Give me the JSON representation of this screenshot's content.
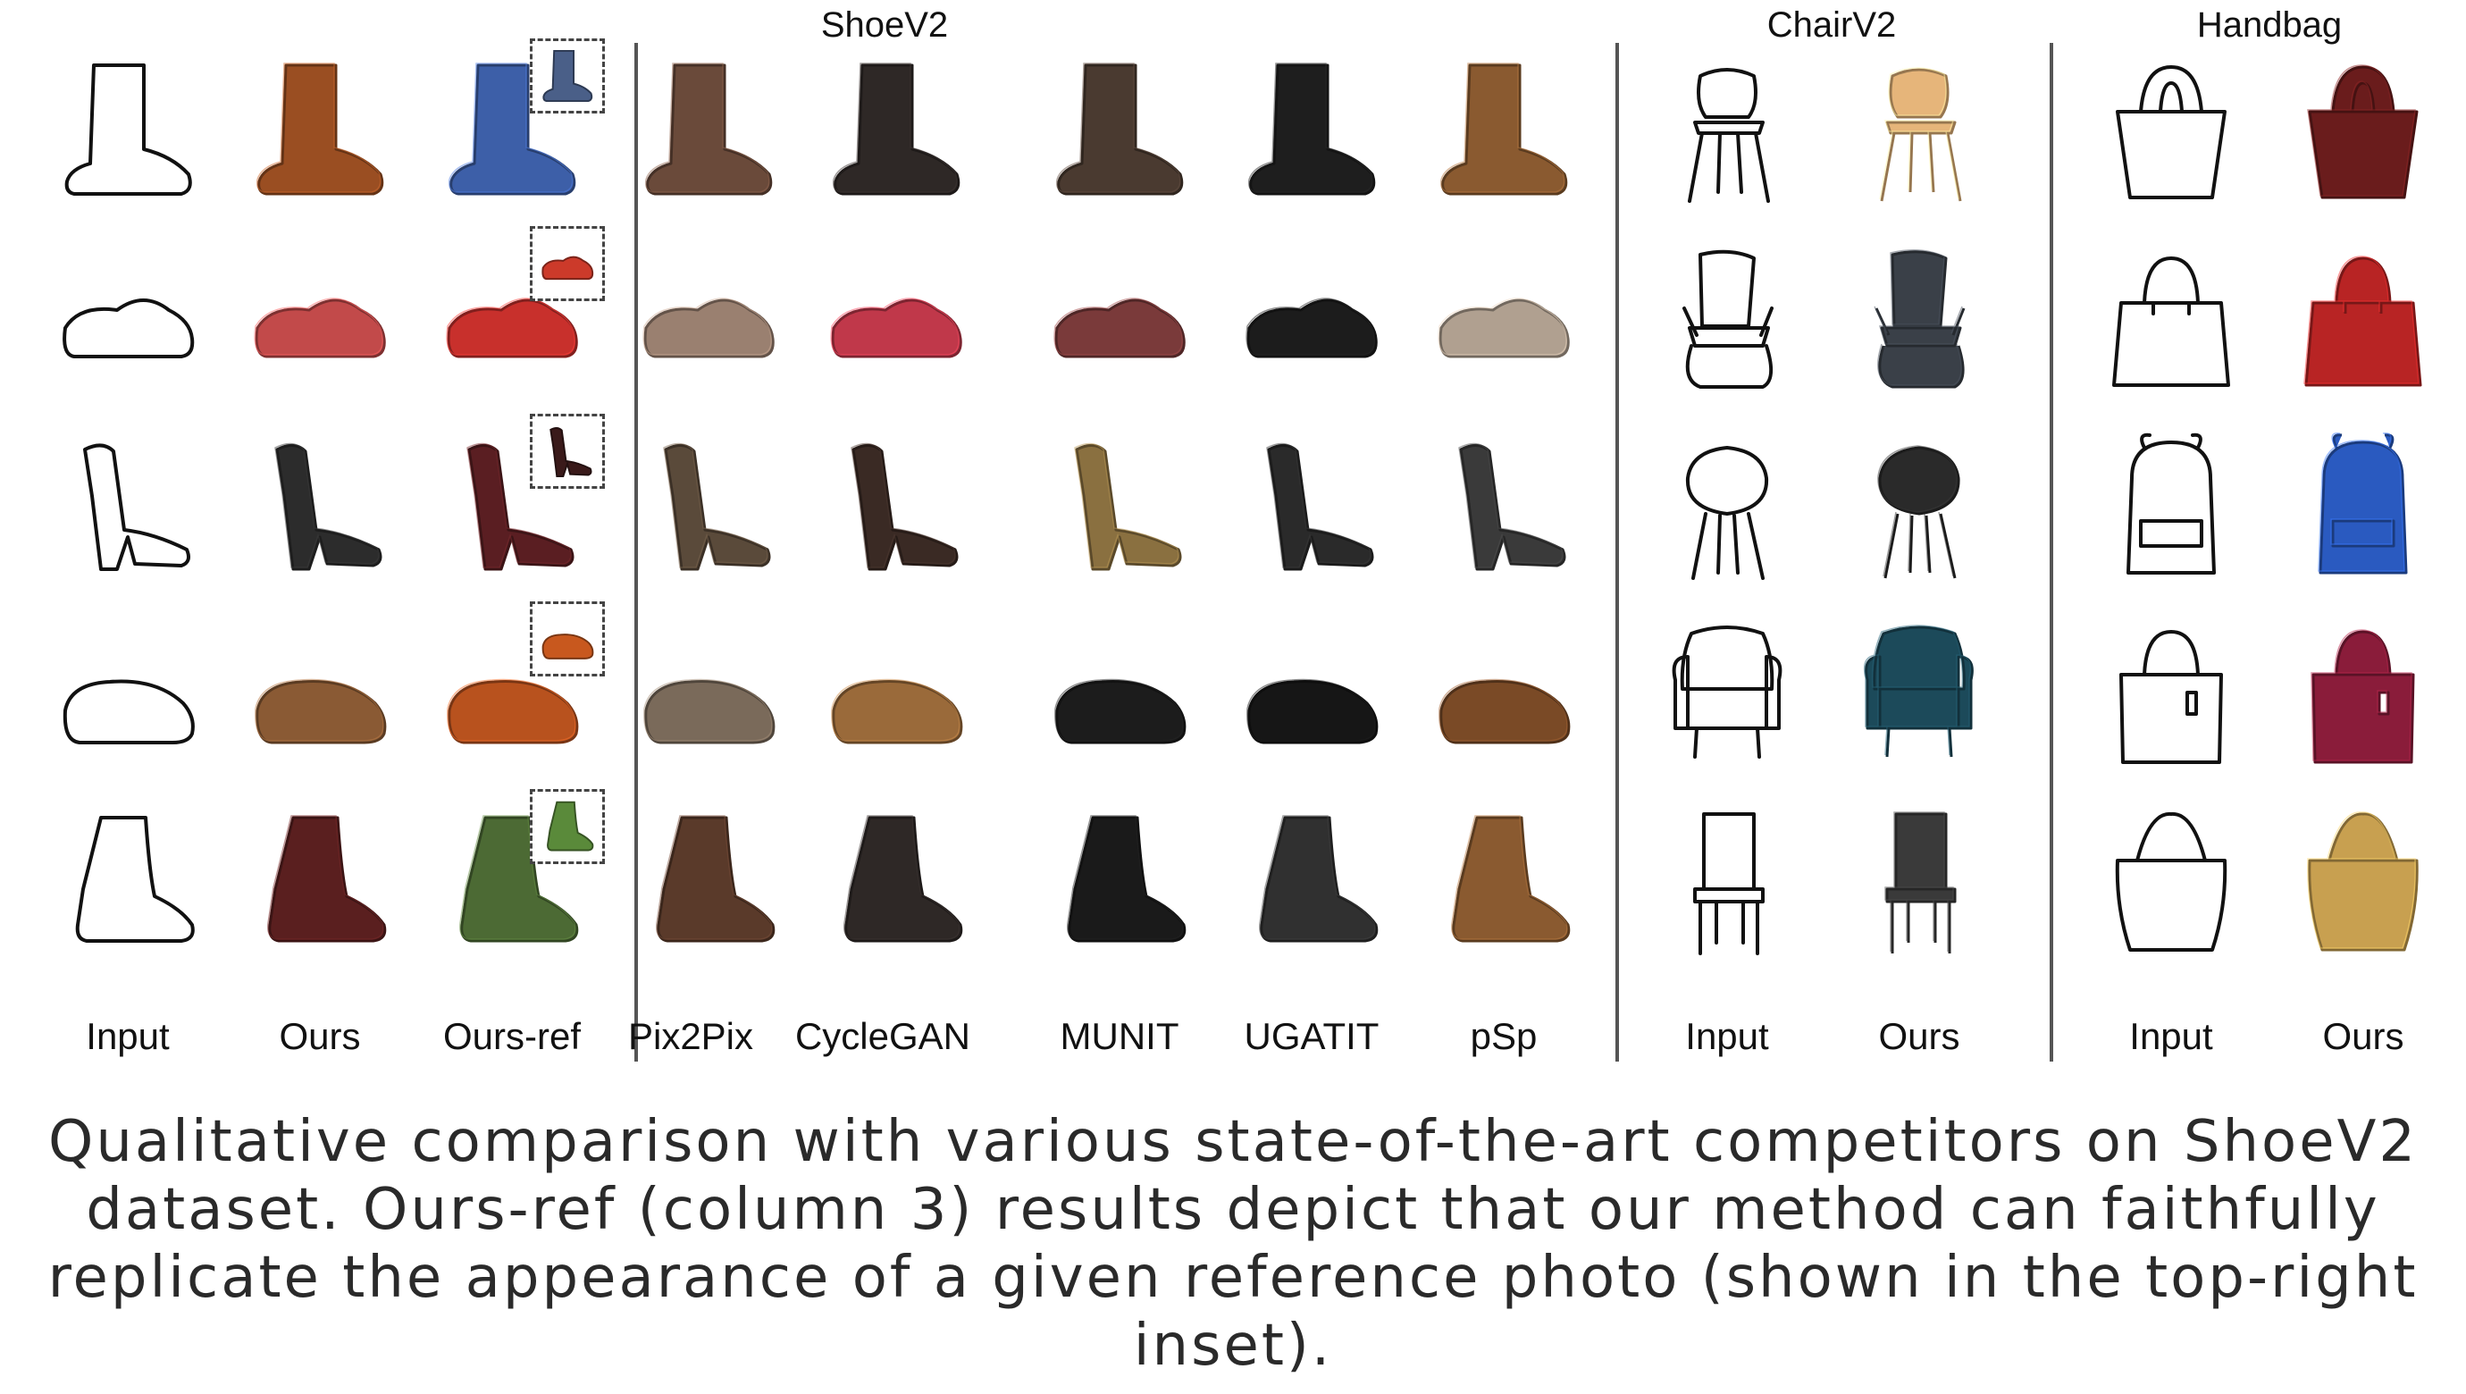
{
  "groups": [
    {
      "title": "ShoeV2"
    },
    {
      "title": "ChairV2"
    },
    {
      "title": "Handbag"
    }
  ],
  "columns": [
    "Input",
    "Ours",
    "Ours-ref",
    "Pix2Pix",
    "CycleGAN",
    "MUNIT",
    "UGATIT",
    "pSp",
    "Input",
    "Ours",
    "Input",
    "Ours"
  ],
  "object_rows": {
    "shoe": [
      "boot",
      "sneaker",
      "sandal",
      "loafer",
      "ankle-boot"
    ],
    "chair": [
      "chair",
      "armchair",
      "shell-chair",
      "wing-chair",
      "dining-chair"
    ],
    "bag": [
      "handbag",
      "tote",
      "backpack",
      "shopper",
      "bucket-bag"
    ]
  },
  "colors": {
    "ours": [
      "#9a4e22",
      "#c24a4a",
      "#2c2c2c",
      "#8a5a34",
      "#5a1f1f"
    ],
    "ours_ref": [
      "#3d5fa8",
      "#c8302c",
      "#5a1e22",
      "#b8521e",
      "#4c6a34"
    ],
    "ref_inset": [
      "#4a5f88",
      "#cc3a2a",
      "#3a1a1a",
      "#c8581e",
      "#5a8a3a"
    ],
    "pix2pix": [
      "#6a4a3a",
      "#9a8070",
      "#5a4a3a",
      "#7a6a5a",
      "#5a3a2a"
    ],
    "cyclegan": [
      "#2e2826",
      "#c0384a",
      "#3a2a24",
      "#9a6a3a",
      "#2e2826"
    ],
    "munit": [
      "#4a3a30",
      "#7a3a3a",
      "#8a7040",
      "#1c1c1c",
      "#1a1a1a"
    ],
    "ugatit": [
      "#1e1e1e",
      "#1c1c1c",
      "#2a2a2a",
      "#161616",
      "#303030"
    ],
    "psp": [
      "#8a5a30",
      "#b0a090",
      "#3a3a3a",
      "#7a4a26",
      "#8a5a30"
    ],
    "chair_ours": [
      "#e6b57a",
      "#3a4048",
      "#2a2a2a",
      "#1c4a5a",
      "#3a3a3a"
    ],
    "bag_ours": [
      "#6a1c1c",
      "#b82424",
      "#2a5ac0",
      "#8a1c3a",
      "#c8a050"
    ]
  },
  "caption": "Qualitative comparison with various state-of-the-art competitors on ShoeV2 dataset. Ours-ref (column 3) results depict that our method can faithfully replicate the appearance of a given reference photo (shown in the top-right inset)."
}
